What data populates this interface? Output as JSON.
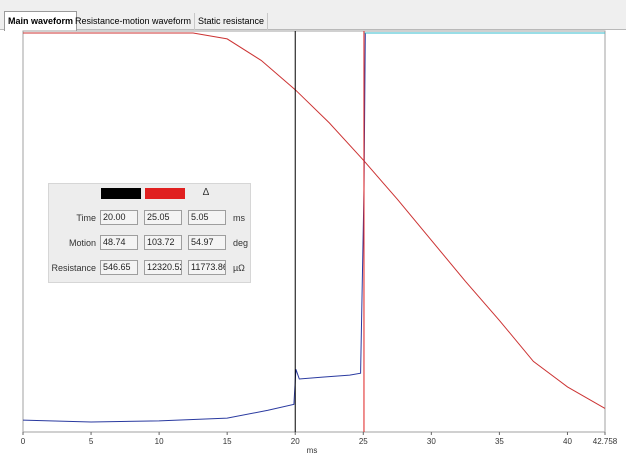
{
  "tabs": [
    {
      "label": "Main waveform",
      "active": true
    },
    {
      "label": "Resistance-motion waveform",
      "active": false
    },
    {
      "label": "Static resistance",
      "active": false
    }
  ],
  "chart_data": {
    "type": "line",
    "xlabel": "ms",
    "xlim": [
      0,
      42.758
    ],
    "x_ticks": [
      "0",
      "5",
      "10",
      "15",
      "20",
      "25",
      "30",
      "35",
      "40",
      "42.758"
    ],
    "cursors": [
      {
        "name": "cursor-1",
        "x": 20.0,
        "color": "#000000"
      },
      {
        "name": "cursor-2",
        "x": 25.05,
        "color": "#e02020"
      }
    ],
    "series": [
      {
        "color": "#cc3333",
        "x": [
          0,
          12.5,
          15,
          17.5,
          20,
          22.5,
          25,
          27.5,
          30,
          32.5,
          35,
          37.5,
          40,
          42.758
        ],
        "y": [
          1.0,
          1.0,
          0.985,
          0.93,
          0.855,
          0.77,
          0.675,
          0.575,
          0.47,
          0.365,
          0.265,
          0.16,
          0.095,
          0.04
        ]
      },
      {
        "color": "#2a3aa0",
        "x": [
          0,
          5,
          10,
          15,
          18,
          19.9,
          20.05,
          20.3,
          22,
          24,
          24.8,
          25.05,
          25.15
        ],
        "y": [
          0.01,
          0.005,
          0.008,
          0.015,
          0.035,
          0.05,
          0.14,
          0.115,
          0.12,
          0.125,
          0.13,
          0.6,
          1.0
        ]
      },
      {
        "color": "#33bbcc",
        "x": [
          25.05,
          42.758
        ],
        "y": [
          1.0,
          1.0
        ]
      }
    ]
  },
  "cursor_panel": {
    "colors": [
      "#000000",
      "#e02020"
    ],
    "delta_symbol": "Δ",
    "rows": [
      {
        "label": "Time",
        "values": [
          "20.00",
          "25.05",
          "5.05"
        ],
        "unit": "ms"
      },
      {
        "label": "Motion",
        "values": [
          "48.74",
          "103.72",
          "54.97"
        ],
        "unit": "deg"
      },
      {
        "label": "Resistance",
        "values": [
          "546.65",
          "12320.52",
          "11773.86"
        ],
        "unit": "µΩ"
      }
    ]
  }
}
